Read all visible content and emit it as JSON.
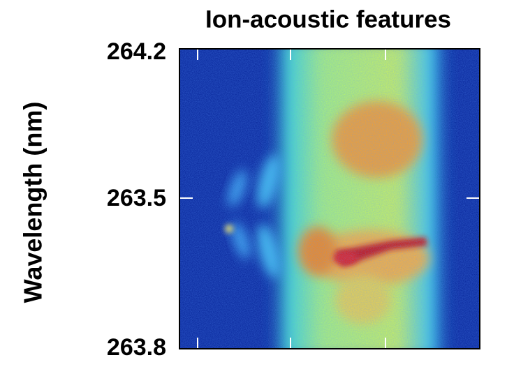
{
  "chart_data": {
    "type": "heatmap",
    "title": "Ion-acoustic features",
    "y_label": "Wavelength (nm)",
    "ytick_labels": [
      "264.2",
      "263.5",
      "263.8"
    ]
  }
}
